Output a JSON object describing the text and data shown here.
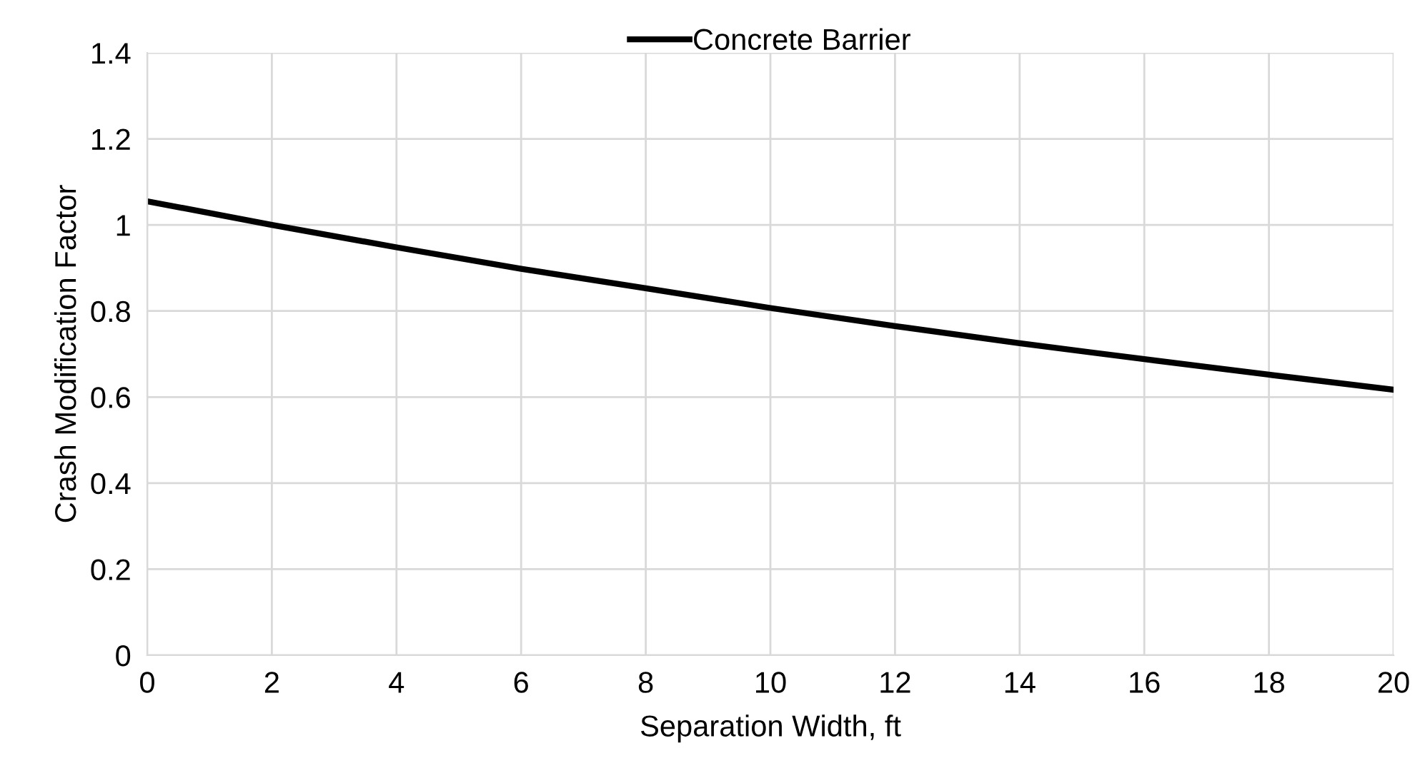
{
  "chart_data": {
    "type": "line",
    "xlabel": "Separation Width, ft",
    "ylabel": "Crash Modification Factor",
    "series": [
      {
        "name": "Concrete Barrier",
        "color": "#000000",
        "x": [
          0,
          2,
          4,
          6,
          8,
          10,
          12,
          14,
          16,
          18,
          20
        ],
        "values": [
          1.055,
          1.0,
          0.948,
          0.898,
          0.853,
          0.807,
          0.765,
          0.725,
          0.688,
          0.652,
          0.617
        ]
      }
    ],
    "xlim": [
      0,
      20
    ],
    "xticks": [
      0,
      2,
      4,
      6,
      8,
      10,
      12,
      14,
      16,
      18,
      20
    ],
    "ylim": [
      0,
      1.4
    ],
    "yticks": [
      0,
      0.2,
      0.4,
      0.6,
      0.8,
      1,
      1.2,
      1.4
    ],
    "grid": true,
    "legend": "top",
    "marker": "none",
    "line_style": "solid"
  }
}
